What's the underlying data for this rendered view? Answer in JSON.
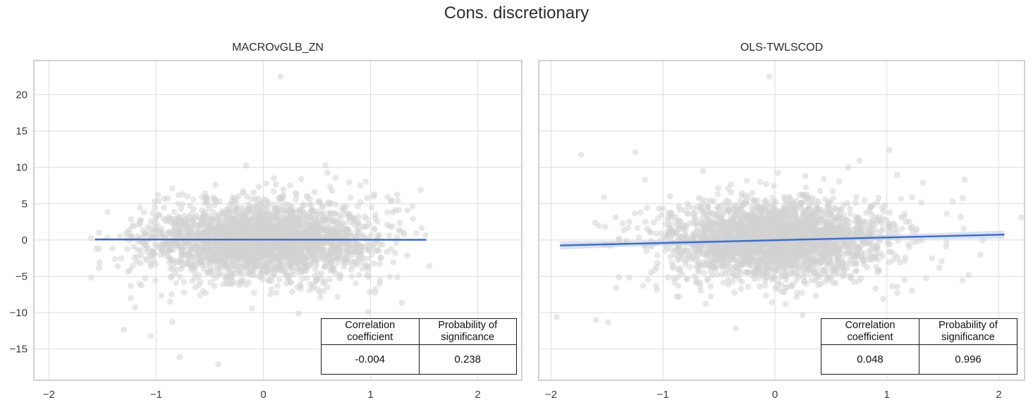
{
  "figure_title": "Cons. discretionary",
  "stats_table_headers": {
    "col1": "Correlation coefficient",
    "col2": "Probability of significance"
  },
  "colors": {
    "point": "#d2d2d2",
    "regression_line": "#3f6cbf",
    "ci_band": "#b9cbe9",
    "grid": "#dfdfdf",
    "spine": "#cccccc",
    "tick_text": "#3a3a3a",
    "title_text": "#2d2d2d"
  },
  "chart_data": [
    {
      "type": "scatter",
      "title": "MACROvGLB_ZN",
      "x_ticks": [
        -2,
        -1,
        0,
        1,
        2
      ],
      "y_ticks": [
        20,
        15,
        10,
        5,
        0,
        -5,
        -10,
        -15
      ],
      "xlim": [
        -2.14,
        2.41
      ],
      "ylim": [
        -19.3,
        24.7
      ],
      "grid": true,
      "correlation_coefficient": "-0.004",
      "probability_of_significance": "0.238",
      "regression": {
        "x1": -1.57,
        "y1": 0.08,
        "x2": 1.52,
        "y2": 0.03,
        "band_half_width_end": 0.18,
        "band_half_width_mid": 0.08
      },
      "scatter_cloud": {
        "n_core": 2400,
        "core_x_std": 0.5,
        "core_y_std": 2.4,
        "n_tail": 300,
        "tail_x_std": 0.72,
        "tail_y_std": 4.4,
        "x_mean": 0,
        "y_mean": 0,
        "x_range": [
          -1.62,
          1.62
        ],
        "y_range": [
          -14.9,
          12.6
        ],
        "seed": 12
      },
      "outlier_points": [
        [
          0.16,
          22.5
        ],
        [
          -0.78,
          -16.1
        ],
        [
          -0.42,
          -17.1
        ],
        [
          -1.05,
          -13.2
        ]
      ]
    },
    {
      "type": "scatter",
      "title": "OLS-TWLSCOD",
      "x_ticks": [
        -2,
        -1,
        0,
        1,
        2
      ],
      "y_ticks": [
        20,
        15,
        10,
        5,
        0,
        -5,
        -10,
        -15
      ],
      "xlim": [
        -2.11,
        2.23
      ],
      "ylim": [
        -19.3,
        24.7
      ],
      "grid": true,
      "correlation_coefficient": "0.048",
      "probability_of_significance": "0.996",
      "regression": {
        "x1": -1.92,
        "y1": -0.75,
        "x2": 2.05,
        "y2": 0.75,
        "band_half_width_end": 0.55,
        "band_half_width_mid": 0.15
      },
      "scatter_cloud": {
        "n_core": 2400,
        "core_x_std": 0.48,
        "core_y_std": 2.5,
        "n_tail": 280,
        "tail_x_std": 0.7,
        "tail_y_std": 4.4,
        "x_mean": 0,
        "y_mean": 0,
        "x_range": [
          -1.94,
          2.2
        ],
        "y_range": [
          -11.6,
          12.4
        ],
        "seed": 99
      },
      "outlier_points": [
        [
          -0.05,
          22.5
        ],
        [
          -1.95,
          -10.6
        ],
        [
          2.2,
          3.1
        ],
        [
          -1.6,
          -11.0
        ],
        [
          -1.49,
          -11.3
        ],
        [
          -0.35,
          -12.2
        ]
      ]
    }
  ]
}
